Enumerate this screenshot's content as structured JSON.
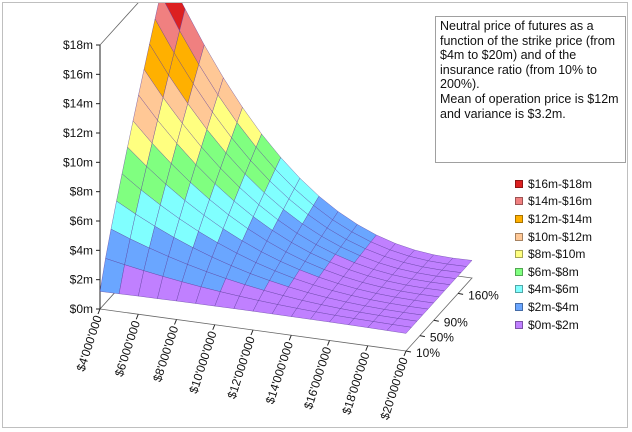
{
  "chart_data": {
    "type": "surface3d",
    "annotation": "Neutral price of futures as a function of the strike price (from $4m to $20m) and of the insurance ratio (from 10% to 200%).\nMean of operation price is $12m and variance is $3.2m.",
    "x_tick_labels": [
      "$4'000'000",
      "$6'000'000",
      "$8'000'000",
      "$10'000'000",
      "$12'000'000",
      "$14'000'000",
      "$16'000'000",
      "$18'000'000",
      "$20'000'000"
    ],
    "x_tick_values": [
      4,
      6,
      8,
      10,
      12,
      14,
      16,
      18,
      20
    ],
    "xlim": [
      4,
      20
    ],
    "y_tick_labels": [
      "10%",
      "50%",
      "90%",
      "160%"
    ],
    "y_tick_values": [
      10,
      50,
      90,
      160
    ],
    "ylim": [
      10,
      200
    ],
    "z_tick_labels": [
      "$0m",
      "$2m",
      "$4m",
      "$6m",
      "$8m",
      "$10m",
      "$12m",
      "$14m",
      "$16m",
      "$18m"
    ],
    "z_tick_values": [
      0,
      2,
      4,
      6,
      8,
      10,
      12,
      14,
      16,
      18
    ],
    "zlim": [
      0,
      18
    ],
    "peak": {
      "x": 4,
      "y": 200,
      "z": 18
    },
    "grid_lines": "on",
    "legend_position": "right",
    "legend": [
      {
        "label": "$16m-$18m",
        "color": "#dc2020"
      },
      {
        "label": "$14m-$16m",
        "color": "#f08080"
      },
      {
        "label": "$12m-$14m",
        "color": "#ffb000"
      },
      {
        "label": "$10m-$12m",
        "color": "#ffc896"
      },
      {
        "label": "$8m-$10m",
        "color": "#ffff80"
      },
      {
        "label": "$6m-$8m",
        "color": "#80ff80"
      },
      {
        "label": "$4m-$6m",
        "color": "#80ffff"
      },
      {
        "label": "$2m-$4m",
        "color": "#6aa6ff"
      },
      {
        "label": "$0m-$2m",
        "color": "#c080ff"
      }
    ],
    "band_colors": [
      "#c080ff",
      "#6aa6ff",
      "#80ffff",
      "#80ff80",
      "#ffff80",
      "#ffc896",
      "#ffb000",
      "#f08080",
      "#dc2020"
    ]
  }
}
